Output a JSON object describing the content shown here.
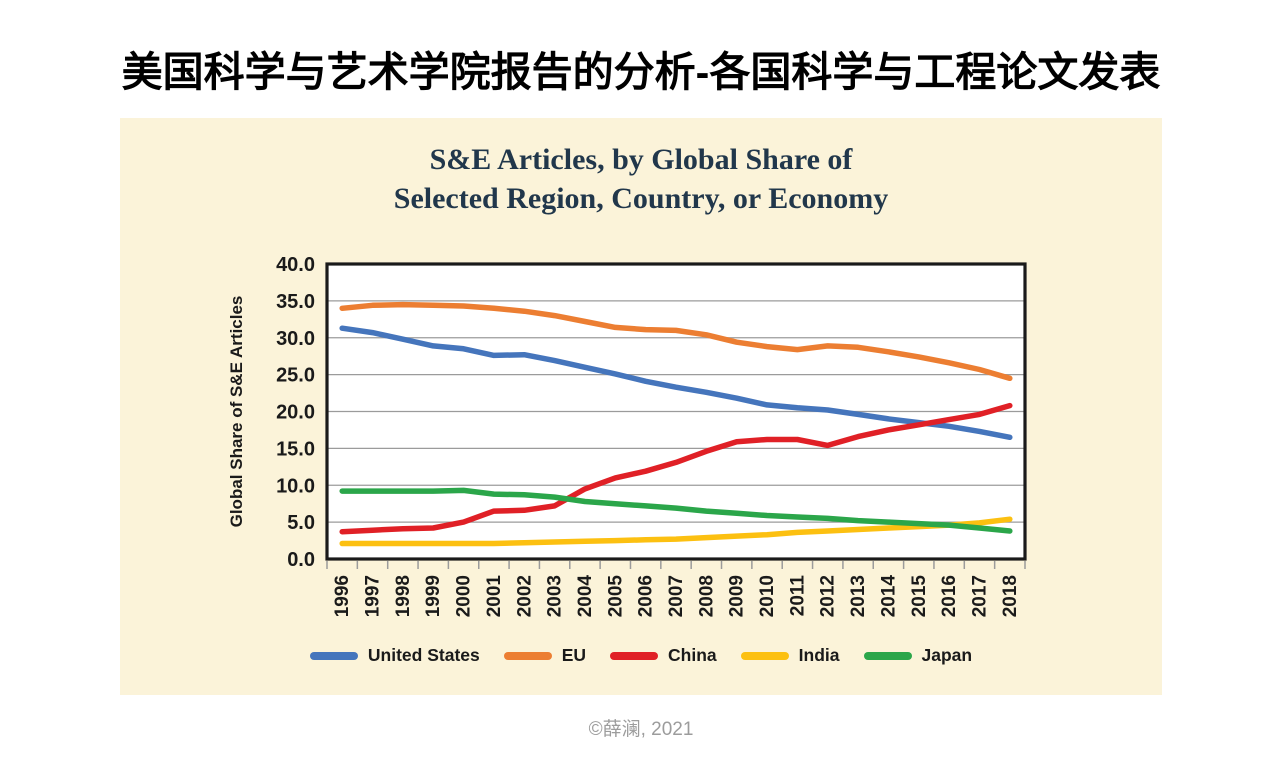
{
  "page": {
    "title": "美国科学与艺术学院报告的分析-各国科学与工程论文发表",
    "footer": "©薛澜, 2021"
  },
  "panel": {
    "background": "#FBF3D9",
    "title_line1": "S&E Articles, by Global Share of",
    "title_line2": "Selected Region, Country, or Economy",
    "title_color": "#21374B"
  },
  "chart_data": {
    "type": "line",
    "title": "S&E Articles, by Global Share of Selected Region, Country, or Economy",
    "xlabel": "",
    "ylabel": "Global Share of S&E Articles",
    "ylim": [
      0,
      40
    ],
    "ytick_step": 5,
    "ytick_labels": [
      "0.0",
      "5.0",
      "10.0",
      "15.0",
      "20.0",
      "25.0",
      "30.0",
      "35.0",
      "40.0"
    ],
    "x": [
      "1996",
      "1997",
      "1998",
      "1999",
      "2000",
      "2001",
      "2002",
      "2003",
      "2004",
      "2005",
      "2006",
      "2007",
      "2008",
      "2009",
      "2010",
      "2011",
      "2012",
      "2013",
      "2014",
      "2015",
      "2016",
      "2017",
      "2018"
    ],
    "grid": "horizontal",
    "grid_color": "#9B9B9B",
    "tick_color": "#9B9B9B",
    "axis_color": "#1A1A1A",
    "plot_background": "#FFFFFF",
    "legend_position": "bottom",
    "series": [
      {
        "name": "United States",
        "color": "#4575BC",
        "values": [
          31.3,
          30.7,
          29.8,
          28.9,
          28.5,
          27.6,
          27.7,
          26.9,
          26.0,
          25.1,
          24.1,
          23.3,
          22.6,
          21.8,
          20.9,
          20.5,
          20.2,
          19.6,
          19.0,
          18.5,
          18.0,
          17.3,
          16.5
        ]
      },
      {
        "name": "EU",
        "color": "#EC7E32",
        "values": [
          34.0,
          34.4,
          34.5,
          34.4,
          34.3,
          34.0,
          33.6,
          33.0,
          32.2,
          31.4,
          31.1,
          31.0,
          30.4,
          29.4,
          28.8,
          28.4,
          28.9,
          28.7,
          28.1,
          27.4,
          26.6,
          25.7,
          24.5
        ]
      },
      {
        "name": "China",
        "color": "#E02026",
        "values": [
          3.7,
          3.9,
          4.1,
          4.2,
          5.0,
          6.5,
          6.6,
          7.2,
          9.5,
          11.0,
          11.9,
          13.1,
          14.6,
          15.9,
          16.2,
          16.2,
          15.4,
          16.6,
          17.5,
          18.2,
          18.9,
          19.6,
          20.8
        ]
      },
      {
        "name": "India",
        "color": "#FCC011",
        "values": [
          2.1,
          2.1,
          2.1,
          2.1,
          2.1,
          2.1,
          2.2,
          2.3,
          2.4,
          2.5,
          2.6,
          2.7,
          2.9,
          3.1,
          3.3,
          3.6,
          3.8,
          4.0,
          4.2,
          4.4,
          4.6,
          4.9,
          5.4
        ]
      },
      {
        "name": "Japan",
        "color": "#2BA64A",
        "values": [
          9.2,
          9.2,
          9.2,
          9.2,
          9.3,
          8.8,
          8.7,
          8.4,
          7.8,
          7.5,
          7.2,
          6.9,
          6.5,
          6.2,
          5.9,
          5.7,
          5.5,
          5.2,
          5.0,
          4.8,
          4.6,
          4.2,
          3.8
        ]
      }
    ]
  }
}
